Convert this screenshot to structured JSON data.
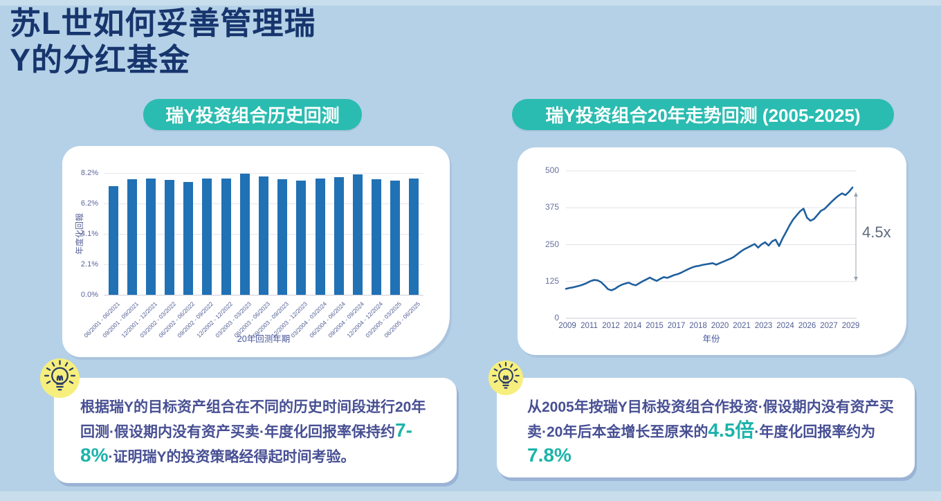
{
  "page": {
    "title": "苏L世如何妥善管理瑞\nY的分红基金"
  },
  "left_section": {
    "badge": "瑞Y投资组合历史回测",
    "note": {
      "icon": "lightbulb-icon",
      "segments": [
        {
          "text": "根据瑞Y的目标资产组合在不同的历史时间段进行20年回测·假设期内没有资产买卖·年度化回报率保持约",
          "highlight": false
        },
        {
          "text": "7-8%",
          "highlight": true
        },
        {
          "text": "·证明瑞Y的投资策略经得起时间考验。",
          "highlight": false
        }
      ]
    }
  },
  "right_section": {
    "badge": "瑞Y投资组合20年走势回测 (2005-2025)",
    "note": {
      "icon": "lightbulb-icon",
      "segments": [
        {
          "text": "从2005年按瑞Y目标投资组合作投资·假设期内没有资产买卖·20年后本金增长至原来的",
          "highlight": false
        },
        {
          "text": "4.5倍",
          "highlight": true
        },
        {
          "text": "·年度化回报率约为",
          "highlight": false
        },
        {
          "text": "7.8%",
          "highlight": true
        }
      ]
    }
  },
  "colors": {
    "background": "#b5d1e7",
    "card": "#ffffff",
    "accent_teal": "#2bbcb1",
    "title_navy": "#17356d",
    "body_text": "#474f93",
    "highlight_teal": "#1db3aa",
    "bar_blue": "#2171b5",
    "line_blue": "#1f5f9e",
    "bulb_yellow": "#f6ef7d"
  },
  "chart_data": [
    {
      "type": "bar",
      "title": "瑞Y投资组合历史回测",
      "xlabel": "20年回测年期",
      "ylabel": "年度化回報",
      "ylim": [
        0,
        8.2
      ],
      "yticks": [
        "0.0%",
        "2.1%",
        "4.1%",
        "6.2%",
        "8.2%"
      ],
      "grid": true,
      "bar_color": "#2171b5",
      "categories": [
        "06/2001 - 06/2021",
        "09/2001 - 09/2021",
        "12/2001 - 12/2021",
        "03/2002 - 03/2022",
        "06/2002 - 06/2022",
        "09/2002 - 09/2022",
        "12/2002 - 12/2022",
        "03/2003 - 03/2023",
        "06/2003 - 06/2023",
        "09/2003 - 09/2023",
        "12/2003 - 12/2023",
        "03/2004 - 03/2024",
        "06/2004 - 06/2024",
        "09/2004 - 09/2024",
        "12/2004 - 12/2024",
        "03/2005 - 03/2025",
        "06/2005 - 06/2025"
      ],
      "values": [
        7.3,
        7.8,
        7.85,
        7.75,
        7.6,
        7.85,
        7.85,
        8.15,
        7.95,
        7.8,
        7.7,
        7.85,
        7.9,
        8.1,
        7.8,
        7.7,
        7.85
      ]
    },
    {
      "type": "line",
      "title": "瑞Y投资组合20年走势回测 (2005-2025)",
      "xlabel": "年份",
      "ylim": [
        0,
        500
      ],
      "yticks": [
        0,
        125,
        250,
        375,
        500
      ],
      "xticklabels": [
        "2009",
        "2011",
        "2012",
        "2014",
        "2015",
        "2017",
        "2018",
        "2020",
        "2021",
        "2023",
        "2024",
        "2026",
        "2027",
        "2029"
      ],
      "grid": true,
      "line_color": "#1f5f9e",
      "annotation": "4.5x",
      "values": [
        100,
        103,
        105,
        108,
        111,
        115,
        120,
        126,
        130,
        129,
        123,
        112,
        99,
        95,
        100,
        108,
        114,
        118,
        121,
        115,
        112,
        119,
        126,
        132,
        138,
        132,
        127,
        134,
        140,
        137,
        142,
        147,
        150,
        155,
        161,
        167,
        172,
        176,
        178,
        181,
        183,
        185,
        187,
        182,
        187,
        192,
        197,
        202,
        208,
        217,
        226,
        234,
        240,
        246,
        252,
        240,
        251,
        258,
        247,
        261,
        267,
        245,
        271,
        293,
        315,
        335,
        349,
        363,
        372,
        341,
        331,
        337,
        351,
        365,
        371,
        383,
        395,
        406,
        416,
        424,
        418,
        429,
        444
      ]
    }
  ]
}
